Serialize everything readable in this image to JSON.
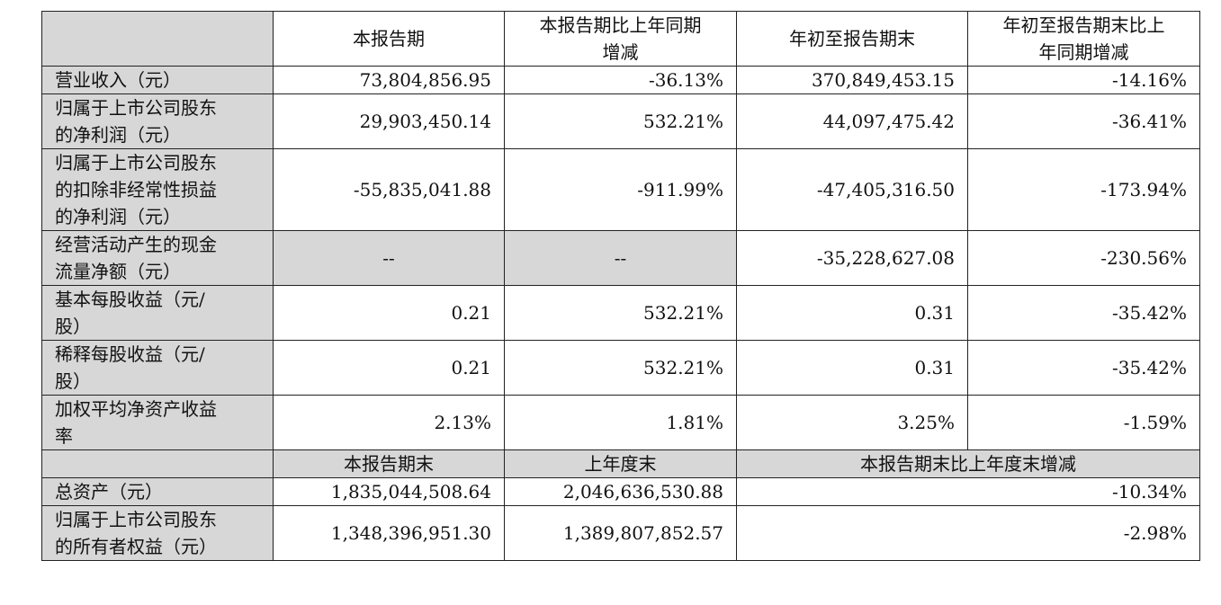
{
  "header": {
    "col1": "本报告期",
    "col2": [
      "本报告期比上年同期",
      "增减"
    ],
    "col3": "年初至报告期末",
    "col4": [
      "年初至报告期末比上",
      "年同期增减"
    ]
  },
  "rows": [
    {
      "label": [
        "营业收入（元）"
      ],
      "v1": "73,804,856.95",
      "v2": "-36.13%",
      "v3": "370,849,453.15",
      "v4": "-14.16%"
    },
    {
      "label": [
        "归属于上市公司股东",
        "的净利润（元）"
      ],
      "v1": "29,903,450.14",
      "v2": "532.21%",
      "v3": "44,097,475.42",
      "v4": "-36.41%"
    },
    {
      "label": [
        "归属于上市公司股东",
        "的扣除非经常性损益",
        "的净利润（元）"
      ],
      "v1": "-55,835,041.88",
      "v2": "-911.99%",
      "v3": "-47,405,316.50",
      "v4": "-173.94%"
    },
    {
      "label": [
        "经营活动产生的现金",
        "流量净额（元）"
      ],
      "v1": "--",
      "v2": "--",
      "v3": "-35,228,627.08",
      "v4": "-230.56%"
    },
    {
      "label": [
        "基本每股收益（元/",
        "股）"
      ],
      "v1": "0.21",
      "v2": "532.21%",
      "v3": "0.31",
      "v4": "-35.42%"
    },
    {
      "label": [
        "稀释每股收益（元/",
        "股）"
      ],
      "v1": "0.21",
      "v2": "532.21%",
      "v3": "0.31",
      "v4": "-35.42%"
    },
    {
      "label": [
        "加权平均净资产收益",
        "率"
      ],
      "v1": "2.13%",
      "v2": "1.81%",
      "v3": "3.25%",
      "v4": "-1.59%"
    }
  ],
  "header2": {
    "col1": "本报告期末",
    "col2": "上年度末",
    "col3": "本报告期末比上年度末增减"
  },
  "rows2": [
    {
      "label": [
        "总资产（元）"
      ],
      "v1": "1,835,044,508.64",
      "v2": "2,046,636,530.88",
      "v3": "-10.34%"
    },
    {
      "label": [
        "归属于上市公司股东",
        "的所有者权益（元）"
      ],
      "v1": "1,348,396,951.30",
      "v2": "1,389,807,852.57",
      "v3": "-2.98%"
    }
  ],
  "colors": {
    "header_bg": "#d7d7d7",
    "border": "#222222"
  }
}
